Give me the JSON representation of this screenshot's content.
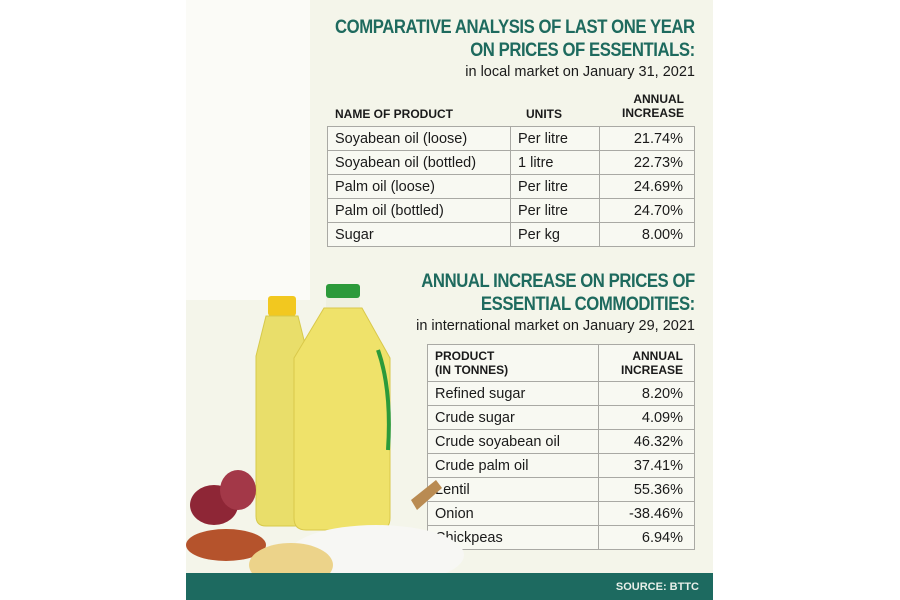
{
  "section1": {
    "title_line1": "COMPARATIVE ANALYSIS OF LAST ONE YEAR",
    "title_line2": "ON PRICES OF ESSENTIALS:",
    "subtitle": "in local market on January 31, 2021",
    "headers": {
      "product": "NAME OF PRODUCT",
      "units": "UNITS",
      "increase_line1": "ANNUAL",
      "increase_line2": "INCREASE"
    },
    "rows": [
      {
        "product": "Soyabean oil (loose)",
        "units": "Per litre",
        "increase": "21.74%"
      },
      {
        "product": "Soyabean oil (bottled)",
        "units": "1 litre",
        "increase": "22.73%"
      },
      {
        "product": "Palm oil (loose)",
        "units": "Per litre",
        "increase": "24.69%"
      },
      {
        "product": "Palm oil (bottled)",
        "units": "Per litre",
        "increase": "24.70%"
      },
      {
        "product": "Sugar",
        "units": "Per kg",
        "increase": "8.00%"
      }
    ]
  },
  "section2": {
    "title_line1": "ANNUAL INCREASE ON PRICES OF",
    "title_line2": "ESSENTIAL COMMODITIES:",
    "subtitle": "in international market on January 29, 2021",
    "headers": {
      "product_line1": "PRODUCT",
      "product_line2": "(IN TONNES)",
      "increase_line1": "ANNUAL",
      "increase_line2": "INCREASE"
    },
    "rows": [
      {
        "product": "Refined sugar",
        "increase": "8.20%"
      },
      {
        "product": "Crude sugar",
        "increase": "4.09%"
      },
      {
        "product": "Crude soyabean oil",
        "increase": "46.32%"
      },
      {
        "product": "Crude palm oil",
        "increase": "37.41%"
      },
      {
        "product": "Lentil",
        "increase": "55.36%"
      },
      {
        "product": "Onion",
        "increase": "-38.46%"
      },
      {
        "product": "Chickpeas",
        "increase": "6.94%"
      }
    ]
  },
  "footer": {
    "source": "SOURCE: BTTC"
  },
  "colors": {
    "title": "#1e6a5e",
    "footer": "#1d6a60",
    "background": "#f4f5ea"
  }
}
